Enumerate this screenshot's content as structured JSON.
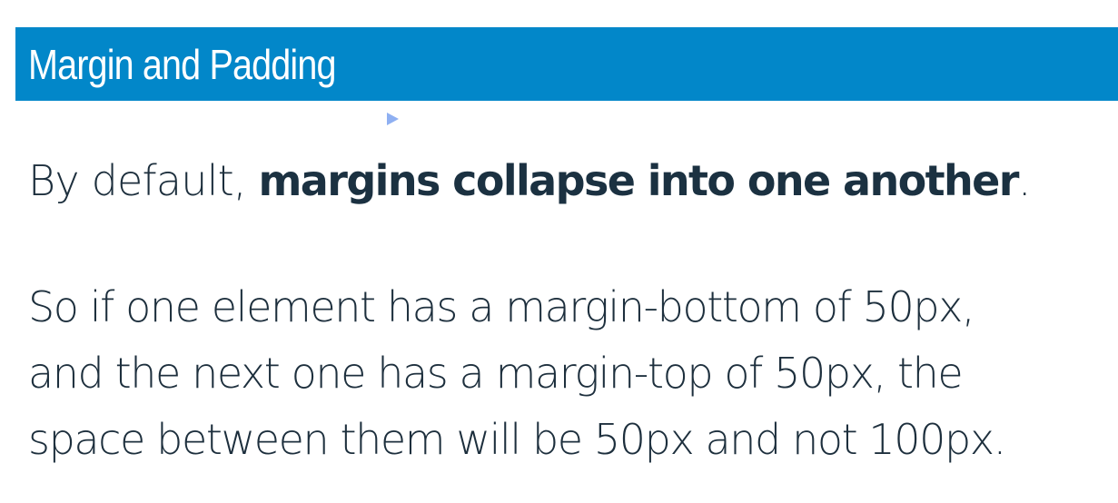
{
  "slide": {
    "title": "Margin and Padding",
    "intro": {
      "prefix": "By default, ",
      "emphasis": "margins collapse into one another",
      "suffix": "."
    },
    "example_lines": [
      "So if one element has a margin-bottom of 50px,",
      "and the next one has a margin-top of 50px, the",
      "space between them will be 50px and not 100px."
    ]
  },
  "colors": {
    "title_bar": "#0287c9",
    "title_text": "#ffffff",
    "body_text": "#1d2f3d",
    "cursor": "#8fb0f2"
  },
  "icons": {
    "cursor": "mouse-pointer-icon"
  }
}
